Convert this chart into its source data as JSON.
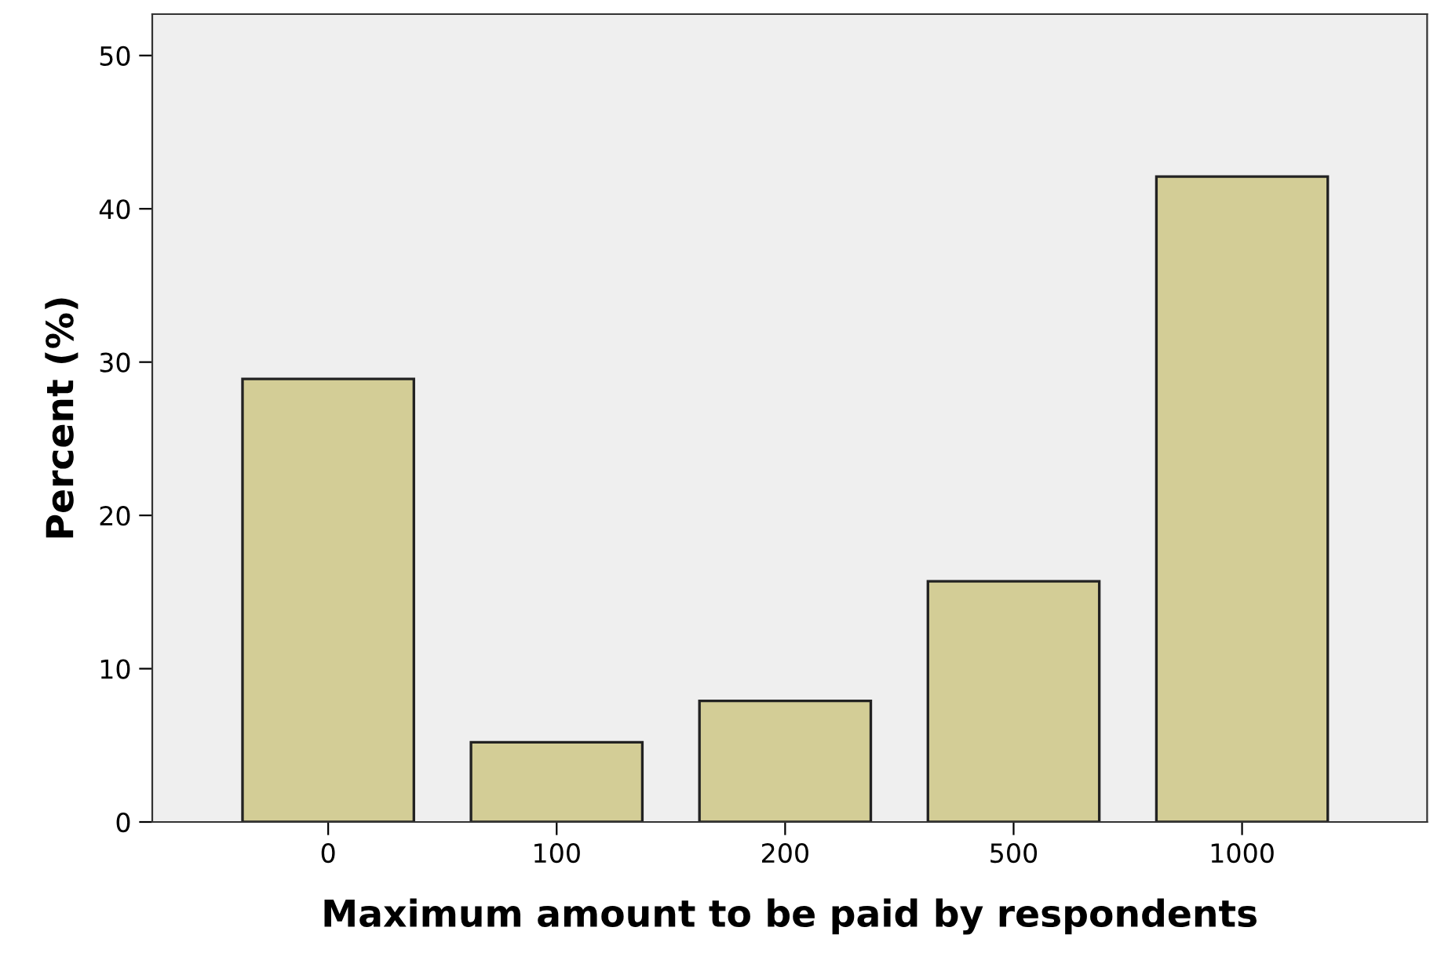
{
  "chart_data": {
    "type": "bar",
    "xlabel": "Maximum amount to be paid by respondents",
    "ylabel": "Percent (%)",
    "categories": [
      "0",
      "100",
      "200",
      "500",
      "1000"
    ],
    "values": [
      28.9,
      5.2,
      7.9,
      15.7,
      42.1
    ],
    "color": "#d3cd96",
    "ylim": [
      0,
      52.7
    ],
    "yticks": [
      0,
      10,
      20,
      30,
      40,
      50
    ],
    "grid": false
  }
}
